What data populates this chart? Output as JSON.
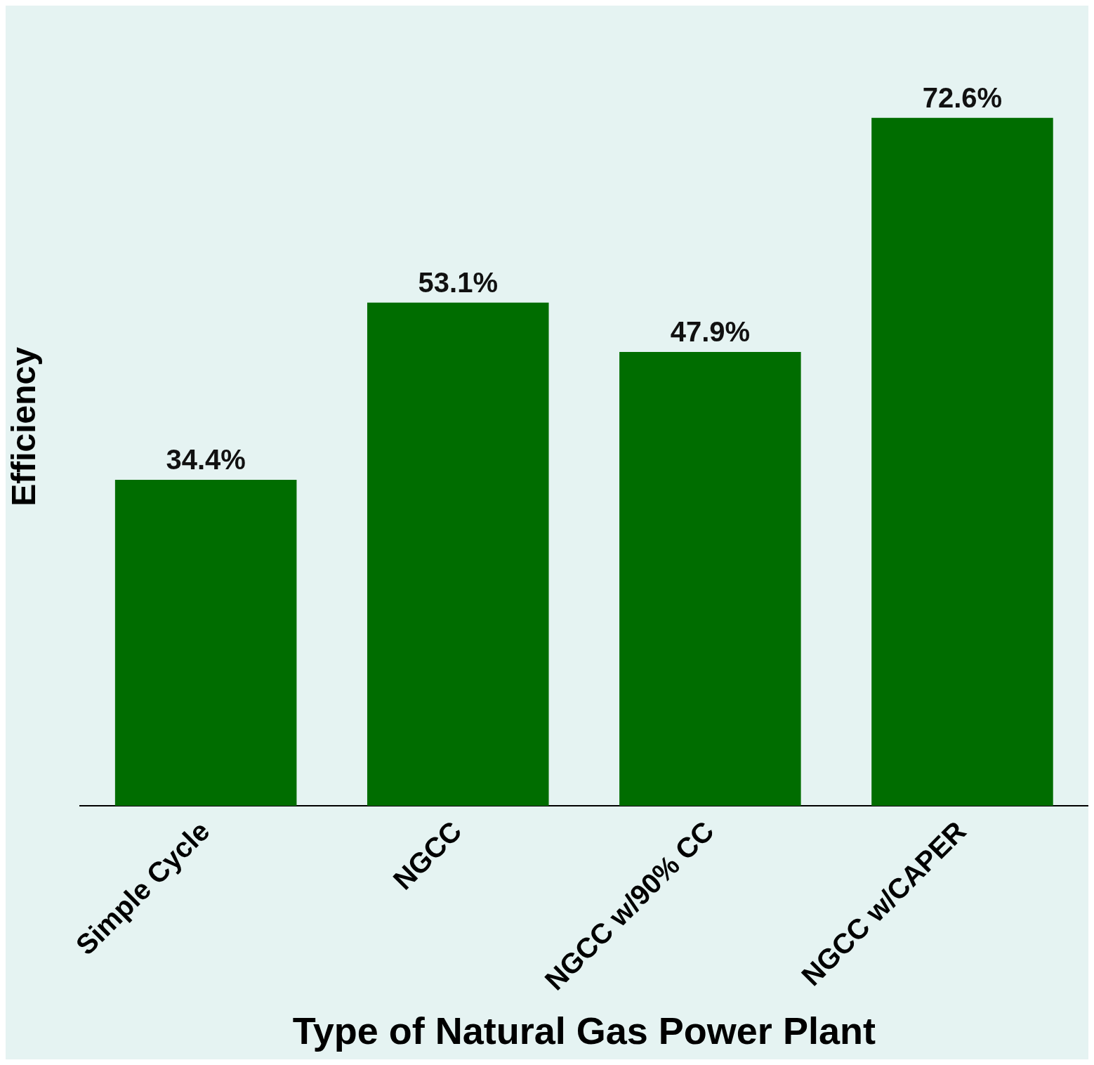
{
  "chart_data": {
    "type": "bar",
    "xlabel": "Type of Natural Gas Power Plant",
    "ylabel": "Efficiency",
    "categories": [
      "Simple Cycle",
      "NGCC",
      "NGCC w/90% CC",
      "NGCC w/CAPER"
    ],
    "values": [
      34.4,
      53.1,
      47.9,
      72.6
    ],
    "value_labels": [
      "34.4%",
      "53.1%",
      "47.9%",
      "72.6%"
    ],
    "color": "#006d00",
    "grid": false,
    "legend": false
  }
}
